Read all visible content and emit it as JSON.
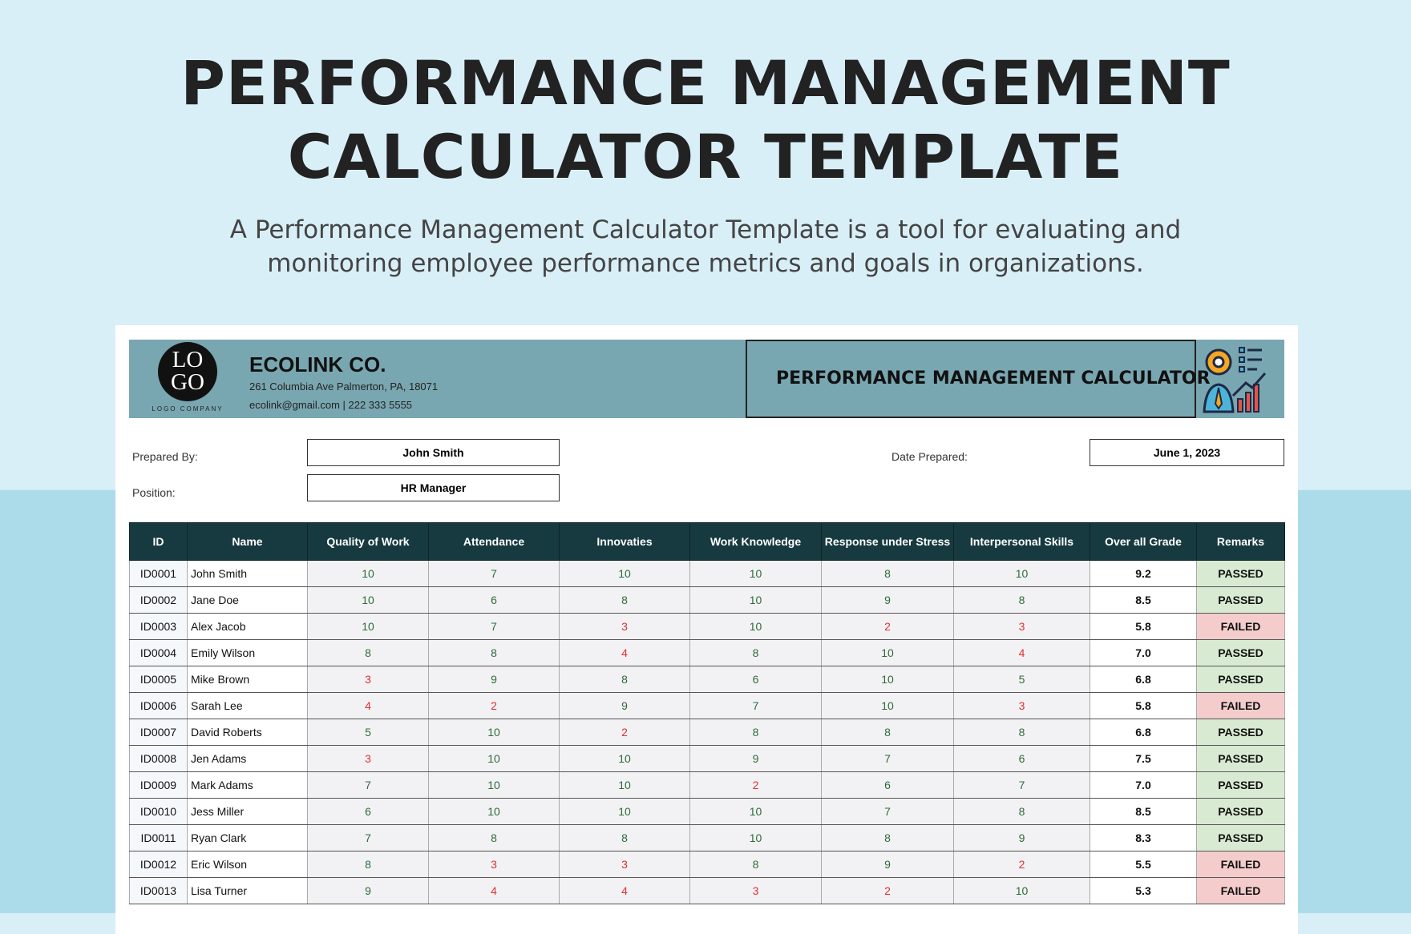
{
  "header": {
    "title_lines": [
      "PERFORMANCE MANAGEMENT",
      "CALCULATOR TEMPLATE"
    ],
    "description": "A Performance Management Calculator Template is a tool for evaluating and monitoring employee performance metrics and goals in organizations."
  },
  "company": {
    "logo": [
      "LO",
      "GO"
    ],
    "logo_caption": "LOGO COMPANY",
    "name": "ECOLINK CO.",
    "address": "261 Columbia Ave Palmerton, PA, 18071",
    "contact": "ecolink@gmail.com | 222 333 5555"
  },
  "calculator_title": "PERFORMANCE MANAGEMENT CALCULATOR",
  "form": {
    "prepared_by": {
      "label": "Prepared By:",
      "value": "John Smith"
    },
    "position": {
      "label": "Position:",
      "value": "HR Manager"
    },
    "date_prepared": {
      "label": "Date Prepared:",
      "value": "June 1, 2023"
    }
  },
  "table": {
    "columns": [
      "ID",
      "Name",
      "Quality of Work",
      "Attendance",
      "Innovaties",
      "Work Knowledge",
      "Response under Stress",
      "Interpersonal Skills",
      "Over all Grade",
      "Remarks"
    ],
    "remark_colors": {
      "PASSED": "#d9ead3",
      "FAILED": "#f4cccc"
    },
    "rows": [
      [
        "ID0001",
        "John Smith",
        10,
        7,
        10,
        10,
        8,
        10,
        "9.2",
        "PASSED"
      ],
      [
        "ID0002",
        "Jane Doe",
        10,
        6,
        8,
        10,
        9,
        8,
        "8.5",
        "PASSED"
      ],
      [
        "ID0003",
        "Alex Jacob",
        10,
        7,
        3,
        10,
        2,
        3,
        "5.8",
        "FAILED"
      ],
      [
        "ID0004",
        "Emily Wilson",
        8,
        8,
        4,
        8,
        10,
        4,
        "7.0",
        "PASSED"
      ],
      [
        "ID0005",
        "Mike Brown",
        3,
        9,
        8,
        6,
        10,
        5,
        "6.8",
        "PASSED"
      ],
      [
        "ID0006",
        "Sarah Lee",
        4,
        2,
        9,
        7,
        10,
        3,
        "5.8",
        "FAILED"
      ],
      [
        "ID0007",
        "David Roberts",
        5,
        10,
        2,
        8,
        8,
        8,
        "6.8",
        "PASSED"
      ],
      [
        "ID0008",
        "Jen Adams",
        3,
        10,
        10,
        9,
        7,
        6,
        "7.5",
        "PASSED"
      ],
      [
        "ID0009",
        "Mark Adams",
        7,
        10,
        10,
        2,
        6,
        7,
        "7.0",
        "PASSED"
      ],
      [
        "ID0010",
        "Jess Miller",
        6,
        10,
        10,
        10,
        7,
        8,
        "8.5",
        "PASSED"
      ],
      [
        "ID0011",
        "Ryan Clark",
        7,
        8,
        8,
        10,
        8,
        9,
        "8.3",
        "PASSED"
      ],
      [
        "ID0012",
        "Eric Wilson",
        8,
        3,
        3,
        8,
        9,
        2,
        "5.5",
        "FAILED"
      ],
      [
        "ID0013",
        "Lisa Turner",
        9,
        4,
        4,
        3,
        2,
        10,
        "5.3",
        "FAILED"
      ]
    ]
  }
}
